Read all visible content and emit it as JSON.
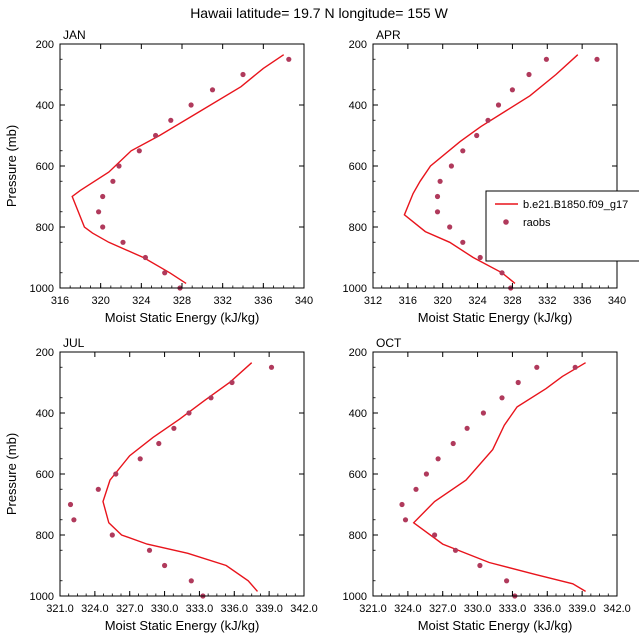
{
  "figure": {
    "title": "Hawaii  latitude= 19.7 N longitude= 155 W",
    "xlabel": "Moist Static Energy (kJ/kg)",
    "ylabel": "Pressure (mb)",
    "legend": {
      "model_label": "b.e21.B1850.f09_g17",
      "obs_label": "raobs",
      "placement": "right, within APR panel"
    },
    "colors": {
      "model_line": "#e8141c",
      "obs_marker": "#b03a5c"
    }
  },
  "chart_data": [
    {
      "type": "line",
      "panel": "JAN",
      "title": "JAN",
      "xlim": [
        316,
        340
      ],
      "ylim": [
        1000,
        200
      ],
      "xticks": [
        316,
        320,
        324,
        328,
        332,
        336,
        340
      ],
      "xtick_labels": [
        "316",
        "320",
        "324",
        "328",
        "332",
        "336",
        "340"
      ],
      "yticks": [
        200,
        400,
        600,
        800,
        1000
      ],
      "ytick_labels": [
        "200",
        "400",
        "600",
        "800",
        "1000"
      ],
      "series": [
        {
          "name": "b.e21.B1850.f09_g17",
          "kind": "line",
          "x": [
            328.4,
            326.8,
            324.2,
            320.8,
            319.2,
            318.4,
            317.8,
            317.2,
            318.0,
            320.8,
            323.0,
            325.8,
            329.8,
            333.8,
            336.0,
            338.0
          ],
          "y": [
            985,
            950,
            900,
            850,
            820,
            800,
            750,
            700,
            680,
            620,
            550,
            500,
            420,
            340,
            280,
            235
          ]
        },
        {
          "name": "raobs",
          "kind": "scatter",
          "x": [
            327.8,
            326.3,
            324.4,
            322.2,
            320.2,
            319.8,
            320.2,
            321.2,
            321.8,
            323.8,
            325.4,
            326.9,
            328.9,
            331.0,
            334.0,
            338.5
          ],
          "y": [
            1000,
            950,
            900,
            850,
            800,
            750,
            700,
            650,
            600,
            550,
            500,
            450,
            400,
            350,
            300,
            250
          ]
        }
      ]
    },
    {
      "type": "line",
      "panel": "APR",
      "title": "APR",
      "xlim": [
        312,
        340
      ],
      "ylim": [
        1000,
        200
      ],
      "xticks": [
        312,
        316,
        320,
        324,
        328,
        332,
        336,
        340
      ],
      "xtick_labels": [
        "312",
        "316",
        "320",
        "324",
        "328",
        "332",
        "336",
        "340"
      ],
      "yticks": [
        200,
        400,
        600,
        800,
        1000
      ],
      "ytick_labels": [
        "200",
        "400",
        "600",
        "800",
        "1000"
      ],
      "series": [
        {
          "name": "b.e21.B1850.f09_g17",
          "kind": "line",
          "x": [
            328.3,
            326.8,
            323.5,
            320.8,
            318.0,
            315.6,
            316.6,
            317.4,
            318.6,
            322.0,
            324.4,
            327.2,
            330.0,
            333.0,
            335.5
          ],
          "y": [
            985,
            950,
            900,
            850,
            815,
            760,
            690,
            650,
            600,
            520,
            470,
            420,
            370,
            300,
            235
          ]
        },
        {
          "name": "raobs",
          "kind": "scatter",
          "x": [
            327.8,
            326.8,
            324.3,
            322.3,
            320.8,
            319.4,
            319.4,
            319.7,
            321.0,
            322.3,
            323.9,
            325.2,
            326.4,
            328.0,
            329.9,
            331.9,
            337.7
          ],
          "y": [
            1000,
            950,
            900,
            850,
            800,
            750,
            700,
            650,
            600,
            550,
            500,
            450,
            400,
            350,
            300,
            250,
            250
          ]
        }
      ]
    },
    {
      "type": "line",
      "panel": "JUL",
      "title": "JUL",
      "xlim": [
        321,
        342
      ],
      "ylim": [
        1000,
        200
      ],
      "xticks": [
        321,
        324,
        327,
        330,
        333,
        336,
        339,
        342
      ],
      "xtick_labels": [
        "321.0",
        "324.0",
        "327.0",
        "330.0",
        "333.0",
        "336.0",
        "339.0",
        "342.0"
      ],
      "yticks": [
        200,
        400,
        600,
        800,
        1000
      ],
      "ytick_labels": [
        "200",
        "400",
        "600",
        "800",
        "1000"
      ],
      "series": [
        {
          "name": "b.e21.B1850.f09_g17",
          "kind": "line",
          "x": [
            338.0,
            337.2,
            335.3,
            332.0,
            328.5,
            326.3,
            325.2,
            324.7,
            325.3,
            327.0,
            329.0,
            331.3,
            333.4,
            335.6,
            337.5
          ],
          "y": [
            985,
            950,
            900,
            860,
            830,
            800,
            760,
            690,
            620,
            540,
            480,
            420,
            360,
            300,
            235
          ]
        },
        {
          "name": "raobs",
          "kind": "scatter",
          "x": [
            333.3,
            332.3,
            330.0,
            328.7,
            325.5,
            322.2,
            321.9,
            324.3,
            325.8,
            327.9,
            329.5,
            330.8,
            332.1,
            334.0,
            335.8,
            339.2
          ],
          "y": [
            1000,
            950,
            900,
            850,
            800,
            750,
            700,
            650,
            600,
            550,
            500,
            450,
            400,
            350,
            300,
            250
          ]
        }
      ]
    },
    {
      "type": "line",
      "panel": "OCT",
      "title": "OCT",
      "xlim": [
        321,
        342
      ],
      "ylim": [
        1000,
        200
      ],
      "xticks": [
        321,
        324,
        327,
        330,
        333,
        336,
        339,
        342
      ],
      "xtick_labels": [
        "321.0",
        "324.0",
        "327.0",
        "330.0",
        "333.0",
        "336.0",
        "339.0",
        "342.0"
      ],
      "yticks": [
        200,
        400,
        600,
        800,
        1000
      ],
      "ytick_labels": [
        "200",
        "400",
        "600",
        "800",
        "1000"
      ],
      "series": [
        {
          "name": "b.e21.B1850.f09_g17",
          "kind": "line",
          "x": [
            339.3,
            338.2,
            335.0,
            331.0,
            327.0,
            324.5,
            326.3,
            329.0,
            331.3,
            332.3,
            333.4,
            335.9,
            337.3,
            339.3
          ],
          "y": [
            985,
            960,
            930,
            890,
            830,
            760,
            690,
            620,
            520,
            440,
            380,
            320,
            280,
            235
          ]
        },
        {
          "name": "raobs",
          "kind": "scatter",
          "x": [
            333.2,
            332.5,
            330.2,
            328.1,
            326.3,
            323.8,
            323.5,
            324.7,
            325.6,
            326.6,
            327.9,
            329.1,
            330.5,
            332.1,
            333.5,
            335.1,
            338.4
          ],
          "y": [
            1000,
            950,
            900,
            850,
            800,
            750,
            700,
            650,
            600,
            550,
            500,
            450,
            400,
            350,
            300,
            250,
            250
          ]
        }
      ]
    }
  ]
}
